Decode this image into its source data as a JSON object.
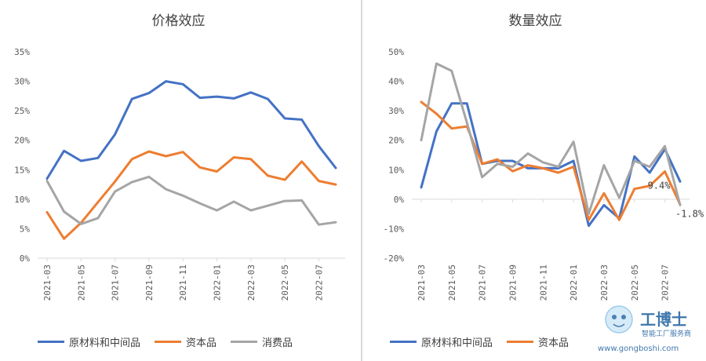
{
  "colors": {
    "intermediate": "#4472c4",
    "capital": "#ed7d31",
    "consumer": "#a5a5a5",
    "axis": "#d9d9d9",
    "text": "#595959"
  },
  "categories": [
    "2021-03",
    "2021-04",
    "2021-05",
    "2021-06",
    "2021-07",
    "2021-08",
    "2021-09",
    "2021-10",
    "2021-11",
    "2021-12",
    "2022-01",
    "2022-02",
    "2022-03",
    "2022-04",
    "2022-05",
    "2022-06",
    "2022-07",
    "2022-08"
  ],
  "tick_labels": [
    "2021-03",
    "2021-05",
    "2021-07",
    "2021-09",
    "2021-11",
    "2022-01",
    "2022-03",
    "2022-05",
    "2022-07"
  ],
  "legend": [
    "原材料和中间品",
    "资本品",
    "消费品"
  ],
  "chart_data": [
    {
      "type": "line",
      "title": "价格效应",
      "xlabel": "",
      "ylabel": "",
      "ylim": [
        0,
        35
      ],
      "y_ticks": [
        "35%",
        "30%",
        "25%",
        "20%",
        "15%",
        "10%",
        "5%",
        "0%"
      ],
      "series": [
        {
          "name": "原材料和中间品",
          "values": [
            13.5,
            18.2,
            16.5,
            17.0,
            21.0,
            27.0,
            28.0,
            30.0,
            29.5,
            27.2,
            27.4,
            27.1,
            28.1,
            27.0,
            23.7,
            23.5,
            19.0,
            15.3
          ]
        },
        {
          "name": "资本品",
          "values": [
            7.8,
            3.3,
            6.0,
            9.5,
            13.0,
            16.8,
            18.1,
            17.3,
            18.0,
            15.4,
            14.7,
            17.1,
            16.8,
            14.0,
            13.3,
            16.4,
            13.1,
            12.5
          ]
        },
        {
          "name": "消费品",
          "values": [
            13.1,
            7.9,
            5.8,
            6.8,
            11.3,
            12.9,
            13.8,
            11.7,
            10.6,
            9.3,
            8.1,
            9.6,
            8.1,
            8.9,
            9.7,
            9.8,
            5.7,
            6.1
          ]
        }
      ]
    },
    {
      "type": "line",
      "title": "数量效应",
      "xlabel": "",
      "ylabel": "",
      "ylim": [
        -20,
        50
      ],
      "y_ticks": [
        "50%",
        "40%",
        "30%",
        "20%",
        "10%",
        "0%",
        "-10%",
        "-20%"
      ],
      "series": [
        {
          "name": "原材料和中间品",
          "values": [
            4.0,
            23.0,
            32.5,
            32.5,
            12.0,
            13.0,
            13.0,
            10.5,
            10.5,
            10.5,
            13.0,
            -9.0,
            -2.0,
            -6.5,
            14.5,
            9.0,
            17.0,
            6.0
          ]
        },
        {
          "name": "资本品",
          "values": [
            33.0,
            29.0,
            24.0,
            24.7,
            12.0,
            13.5,
            9.5,
            11.5,
            10.5,
            9.0,
            11.0,
            -7.0,
            2.0,
            -7.0,
            3.5,
            4.5,
            9.4,
            -1.8
          ]
        },
        {
          "name": "消费品",
          "values": [
            20.0,
            46.0,
            43.5,
            26.0,
            7.5,
            12.0,
            11.0,
            15.5,
            12.5,
            11.0,
            19.5,
            -5.0,
            11.5,
            0.5,
            13.0,
            11.0,
            18.0,
            -2.0
          ]
        }
      ],
      "annotations": [
        {
          "text": "9.4%",
          "series": "资本品",
          "index": 16
        },
        {
          "text": "-1.8%",
          "series": "资本品",
          "index": 17
        }
      ]
    }
  ],
  "watermark": {
    "brand": "工博士",
    "subtitle": "智能工厂服务商",
    "url": "www.gongboshi.com"
  }
}
